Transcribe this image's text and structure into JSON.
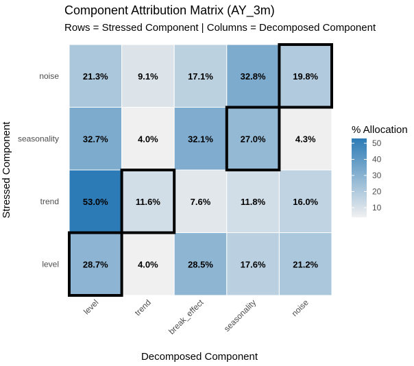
{
  "chart_data": {
    "type": "heatmap",
    "title": "Component Attribution Matrix (AY_3m)",
    "subtitle": "Rows = Stressed Component | Columns = Decomposed Component",
    "xlabel": "Decomposed Component",
    "ylabel": "Stressed Component",
    "x_categories": [
      "level",
      "trend",
      "break_effect",
      "seasonality",
      "noise"
    ],
    "y_categories": [
      "level",
      "trend",
      "seasonality",
      "noise"
    ],
    "values": [
      [
        28.7,
        4.0,
        28.5,
        17.6,
        21.2
      ],
      [
        53.0,
        11.6,
        7.6,
        11.8,
        16.0
      ],
      [
        32.7,
        4.0,
        32.1,
        27.0,
        4.3
      ],
      [
        21.3,
        9.1,
        17.1,
        32.8,
        19.8
      ]
    ],
    "cell_labels": [
      [
        "28.7%",
        "4.0%",
        "28.5%",
        "17.6%",
        "21.2%"
      ],
      [
        "53.0%",
        "11.6%",
        "7.6%",
        "11.8%",
        "16.0%"
      ],
      [
        "32.7%",
        "4.0%",
        "32.1%",
        "27.0%",
        "4.3%"
      ],
      [
        "21.3%",
        "9.1%",
        "17.1%",
        "32.8%",
        "19.8%"
      ]
    ],
    "highlighted_cells": [
      {
        "row": "level",
        "col": "level"
      },
      {
        "row": "trend",
        "col": "trend"
      },
      {
        "row": "seasonality",
        "col": "seasonality"
      },
      {
        "row": "noise",
        "col": "noise"
      }
    ],
    "legend": {
      "title": "% Allocation",
      "ticks": [
        10,
        20,
        30,
        40,
        50
      ],
      "range": [
        4.0,
        53.0
      ],
      "low_color": "#f0f0f0",
      "high_color": "#2c7bb6",
      "placement": "right"
    },
    "grid": false
  }
}
